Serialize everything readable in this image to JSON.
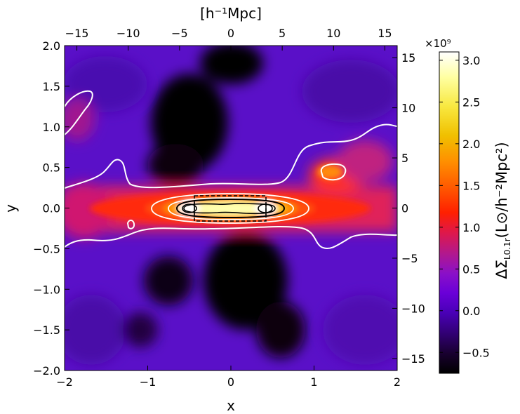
{
  "chart_data": {
    "type": "heatmap",
    "xlabel": "x",
    "ylabel": "y",
    "x2label": "[h⁻¹Mpc]",
    "y2label": "",
    "xlim": [
      -2,
      2
    ],
    "ylim": [
      -2,
      2
    ],
    "x2lim": [
      -16.2,
      16.2
    ],
    "y2lim": [
      -16.2,
      16.2
    ],
    "x_ticks": [
      "−2",
      "−1",
      "0",
      "1",
      "2"
    ],
    "y_ticks": [
      "−2.0",
      "−1.5",
      "−1.0",
      "−0.5",
      "0.0",
      "0.5",
      "1.0",
      "1.5",
      "2.0"
    ],
    "x2_ticks": [
      "−15",
      "−10",
      "−5",
      "0",
      "5",
      "10",
      "15"
    ],
    "y2_ticks": [
      "−15",
      "−10",
      "−5",
      "0",
      "5",
      "10",
      "15"
    ],
    "colorbar": {
      "label": "ΔΣL0.1r (L⊙/h⁻²Mpc²)",
      "label_main": "ΔΣ",
      "label_sub": "L0.1r",
      "label_units": "(L⊙/h⁻²Mpc²)",
      "multiplier": "×10⁹",
      "range": [
        -0.75,
        3.1
      ],
      "ticks": [
        "−0.5",
        "0.0",
        "0.5",
        "1.0",
        "1.5",
        "2.0",
        "2.5",
        "3.0"
      ],
      "colormap": "gnuplot2-like (black → purple → red → orange → yellow → white)",
      "colors": [
        "#000000",
        "#2a0060",
        "#5a00c8",
        "#8a10d0",
        "#d01860",
        "#ff2000",
        "#ff7000",
        "#f0c000",
        "#ffff80",
        "#ffffff"
      ]
    },
    "features": {
      "filament_axis": "horizontal (y = 0)",
      "halo_centers": [
        [
          -0.42,
          0.0
        ],
        [
          0.42,
          0.0
        ]
      ],
      "dashed_box": {
        "x": [
          -0.42,
          0.42
        ],
        "y": [
          -0.15,
          0.15
        ]
      },
      "contour_colors": [
        "#ffffff",
        "#000000"
      ]
    }
  }
}
